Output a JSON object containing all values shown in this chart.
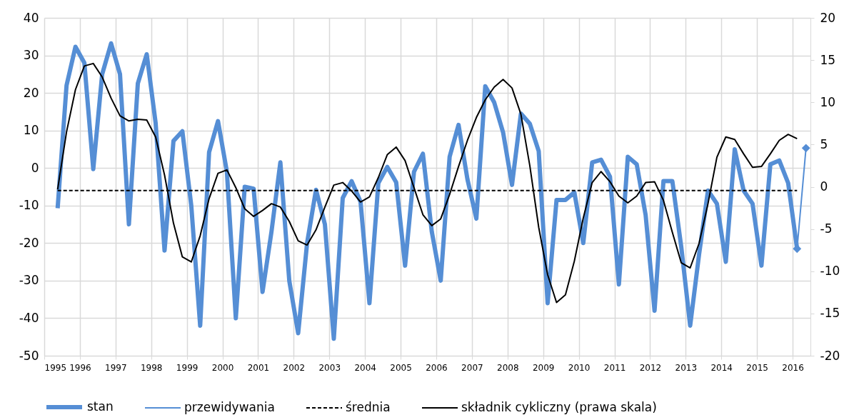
{
  "chart_data": {
    "type": "line",
    "x": [
      1995.375,
      1995.625,
      1995.875,
      1996.125,
      1996.375,
      1996.625,
      1996.875,
      1997.125,
      1997.375,
      1997.625,
      1997.875,
      1998.125,
      1998.375,
      1998.625,
      1998.875,
      1999.125,
      1999.375,
      1999.625,
      1999.875,
      2000.125,
      2000.375,
      2000.625,
      2000.875,
      2001.125,
      2001.375,
      2001.625,
      2001.875,
      2002.125,
      2002.375,
      2002.625,
      2002.875,
      2003.125,
      2003.375,
      2003.625,
      2003.875,
      2004.125,
      2004.375,
      2004.625,
      2004.875,
      2005.125,
      2005.375,
      2005.625,
      2005.875,
      2006.125,
      2006.375,
      2006.625,
      2006.875,
      2007.125,
      2007.375,
      2007.625,
      2007.875,
      2008.125,
      2008.375,
      2008.625,
      2008.875,
      2009.125,
      2009.375,
      2009.625,
      2009.875,
      2010.125,
      2010.375,
      2010.625,
      2010.875,
      2011.125,
      2011.375,
      2011.625,
      2011.875,
      2012.125,
      2012.375,
      2012.625,
      2012.875,
      2013.125,
      2013.375,
      2013.625,
      2013.875,
      2014.125,
      2014.375,
      2014.625,
      2014.875,
      2015.125,
      2015.375,
      2015.625,
      2015.875,
      2016.125
    ],
    "series": [
      {
        "name": "stan",
        "color": "#558ed5",
        "values": [
          -10.7,
          22,
          32.3,
          28,
          -0.3,
          25,
          33.2,
          25,
          -15,
          22.5,
          30.3,
          12,
          -22,
          7.2,
          9.8,
          -10,
          -42,
          4.2,
          12.5,
          -1,
          -40,
          -5,
          -5.5,
          -33,
          -17,
          1.5,
          -30,
          -44,
          -20,
          -5.8,
          -15,
          -45.5,
          -8,
          -3.5,
          -9,
          -36,
          -4,
          0.3,
          -3.8,
          -26,
          -1,
          3.8,
          -17,
          -30,
          3,
          11.5,
          -3,
          -13.5,
          21.8,
          17.5,
          9.5,
          -4.5,
          14.5,
          11.8,
          4.5,
          -36,
          -8.5,
          -8.5,
          -6.5,
          -20,
          1.5,
          2.2,
          -2.3,
          -31,
          3,
          1,
          -12.5,
          -38,
          -3.5,
          -3.5,
          -21,
          -42,
          -23,
          -6,
          -9.5,
          -25,
          5,
          -6,
          -9.5,
          -26,
          1,
          2,
          -4,
          -21.5
        ]
      },
      {
        "name": "przewidywania",
        "color": "#558ed5",
        "x": [
          2016.125,
          2016.375
        ],
        "values": [
          -21.5,
          5.3
        ],
        "marker": "diamond"
      },
      {
        "name": "średnia",
        "color": "#000000",
        "x": [
          1995.375,
          2016.125
        ],
        "values": [
          -6,
          -6
        ],
        "line_style": "dashed"
      },
      {
        "name": "składnik cykliczny (prawa skala)",
        "color": "#000000",
        "axis": "y2",
        "values": [
          -0.3,
          6.5,
          11.5,
          14.3,
          14.6,
          13,
          10.5,
          8.4,
          7.8,
          8,
          7.9,
          5.9,
          1.4,
          -4.3,
          -8.3,
          -8.9,
          -5.8,
          -1.4,
          1.6,
          2,
          -0.1,
          -2.6,
          -3.5,
          -2.8,
          -2,
          -2.4,
          -4.1,
          -6.4,
          -6.9,
          -5.1,
          -2.4,
          0.2,
          0.5,
          -0.5,
          -1.8,
          -1.2,
          1.1,
          3.8,
          4.7,
          3.1,
          -0.1,
          -3.3,
          -4.6,
          -3.8,
          -0.9,
          2.4,
          5.5,
          8.2,
          10.3,
          11.8,
          12.7,
          11.7,
          8.6,
          2.5,
          -4.8,
          -10.4,
          -13.7,
          -12.8,
          -8.8,
          -3.7,
          0.5,
          1.8,
          0.6,
          -1.1,
          -1.9,
          -1.1,
          0.5,
          0.6,
          -1.6,
          -5.4,
          -9,
          -9.6,
          -6.7,
          -2,
          3.5,
          5.9,
          5.6,
          3.9,
          2.3,
          2.4,
          3.9,
          5.5,
          6.2,
          5.7
        ]
      }
    ],
    "xlim": [
      1995,
      2016.5
    ],
    "xticks": [
      1995,
      1996,
      1997,
      1998,
      1999,
      2000,
      2001,
      2002,
      2003,
      2004,
      2005,
      2006,
      2007,
      2008,
      2009,
      2010,
      2011,
      2012,
      2013,
      2014,
      2015,
      2016
    ],
    "ylim": [
      -50,
      40
    ],
    "yticks": [
      -50,
      -40,
      -30,
      -20,
      -10,
      0,
      10,
      20,
      30,
      40
    ],
    "y2lim": [
      -20,
      20
    ],
    "y2ticks": [
      -20,
      -15,
      -10,
      -5,
      0,
      5,
      10,
      15,
      20
    ],
    "grid": true,
    "legend": "bottom",
    "line_style": "solid"
  }
}
